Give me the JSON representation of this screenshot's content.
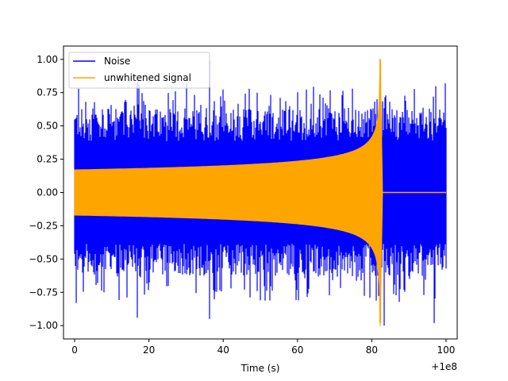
{
  "chart_data": {
    "type": "line",
    "title": "",
    "xlabel": "Time (s)",
    "ylabel": "",
    "x_offset_label": "+1e8",
    "xlim": [
      -3,
      103
    ],
    "ylim": [
      -1.1,
      1.1
    ],
    "x_ticks": [
      0,
      20,
      40,
      60,
      80,
      100
    ],
    "x_tick_labels": [
      "0",
      "20",
      "40",
      "60",
      "80",
      "100"
    ],
    "y_ticks": [
      -1.0,
      -0.75,
      -0.5,
      -0.25,
      0.0,
      0.25,
      0.5,
      0.75,
      1.0
    ],
    "y_tick_labels": [
      "−1.00",
      "−0.75",
      "−0.50",
      "−0.25",
      "0.00",
      "0.25",
      "0.50",
      "0.75",
      "1.00"
    ],
    "grid": false,
    "legend_position": "top-left",
    "series": [
      {
        "name": "Noise",
        "color": "#0000ff",
        "x_range": [
          0,
          100
        ],
        "amplitude_typical": 0.55,
        "peaks": [
          {
            "x": 0.5,
            "y": -0.83
          },
          {
            "x": 1.0,
            "y": 0.78
          },
          {
            "x": 16.8,
            "y": 0.83
          },
          {
            "x": 16.8,
            "y": -0.94
          },
          {
            "x": 36.3,
            "y": 0.99
          },
          {
            "x": 36.3,
            "y": -0.95
          },
          {
            "x": 81.5,
            "y": 0.7
          },
          {
            "x": 83.3,
            "y": -1.0
          },
          {
            "x": 96.7,
            "y": -0.98
          },
          {
            "x": 99.8,
            "y": 0.82
          }
        ]
      },
      {
        "name": "unwhitened signal",
        "color": "#ffa500",
        "x_range": [
          0,
          100
        ],
        "envelope_start": 0.17,
        "merger_time": 82.3,
        "peak_amplitude": 1.0,
        "post_merger_value": 0.0
      }
    ]
  }
}
